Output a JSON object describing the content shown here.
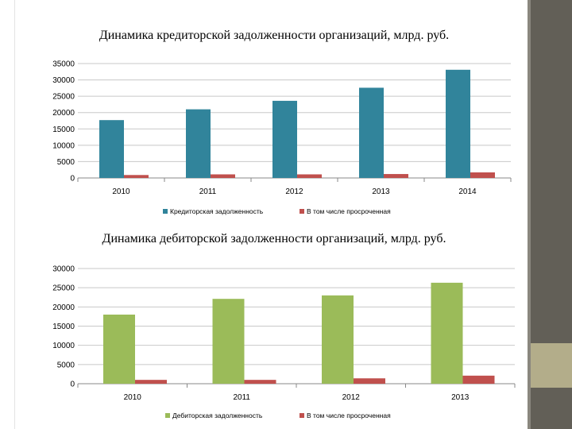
{
  "colors": {
    "creditor": "#31849b",
    "debtor": "#9bbb59",
    "overdue": "#c0504d"
  },
  "chart_data": [
    {
      "type": "bar",
      "title": "Динамика кредиторской задолженности организаций, млрд. руб.",
      "categories": [
        "2010",
        "2011",
        "2012",
        "2013",
        "2014"
      ],
      "series": [
        {
          "name": "Кредиторская задолженность",
          "values": [
            17700,
            21000,
            23600,
            27600,
            33100
          ]
        },
        {
          "name": "В том числе просроченная",
          "values": [
            900,
            1100,
            1100,
            1200,
            1700
          ]
        }
      ],
      "yticks": [
        "0",
        "5000",
        "10000",
        "15000",
        "20000",
        "25000",
        "30000",
        "35000"
      ],
      "ylim": [
        0,
        35000
      ],
      "grid": true,
      "legend_position": "bottom"
    },
    {
      "type": "bar",
      "title": "Динамика дебиторской задолженности организаций, млрд. руб.",
      "categories": [
        "2010",
        "2011",
        "2012",
        "2013"
      ],
      "series": [
        {
          "name": "Дебиторская задолженность",
          "values": [
            18000,
            22100,
            23000,
            26300
          ]
        },
        {
          "name": "В том числе просроченная",
          "values": [
            1000,
            1000,
            1400,
            2100
          ]
        }
      ],
      "yticks": [
        "0",
        "5000",
        "10000",
        "15000",
        "20000",
        "25000",
        "30000"
      ],
      "ylim": [
        0,
        30000
      ],
      "grid": true,
      "legend_position": "bottom"
    }
  ]
}
